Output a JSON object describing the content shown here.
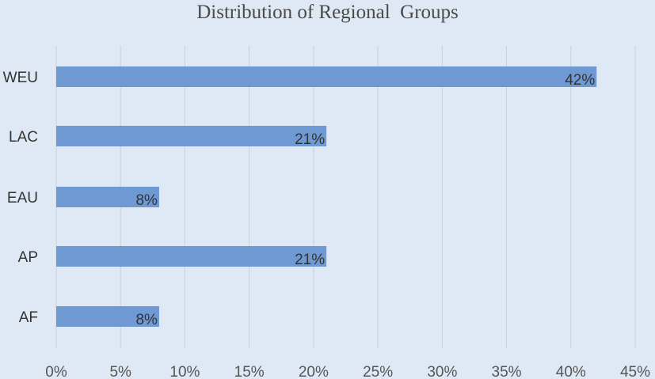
{
  "chart_data": {
    "type": "bar",
    "orientation": "horizontal",
    "title": "Distribution of Regional  Groups",
    "categories": [
      "WEU",
      "LAC",
      "EAU",
      "AP",
      "AF"
    ],
    "values": [
      42,
      21,
      8,
      21,
      8
    ],
    "data_labels": [
      "42%",
      "21%",
      "8%",
      "21%",
      "8%"
    ],
    "xlim": [
      0,
      45
    ],
    "x_ticks": [
      0,
      5,
      10,
      15,
      20,
      25,
      30,
      35,
      40,
      45
    ],
    "x_tick_labels": [
      "0%",
      "5%",
      "10%",
      "15%",
      "20%",
      "25%",
      "30%",
      "35%",
      "40%",
      "45%"
    ],
    "xlabel": "",
    "ylabel": "",
    "grid": true,
    "legend": "none",
    "colors": {
      "bar": "#6f99d2",
      "background": "#dfe9f5",
      "grid": "#c9cfd6"
    }
  }
}
